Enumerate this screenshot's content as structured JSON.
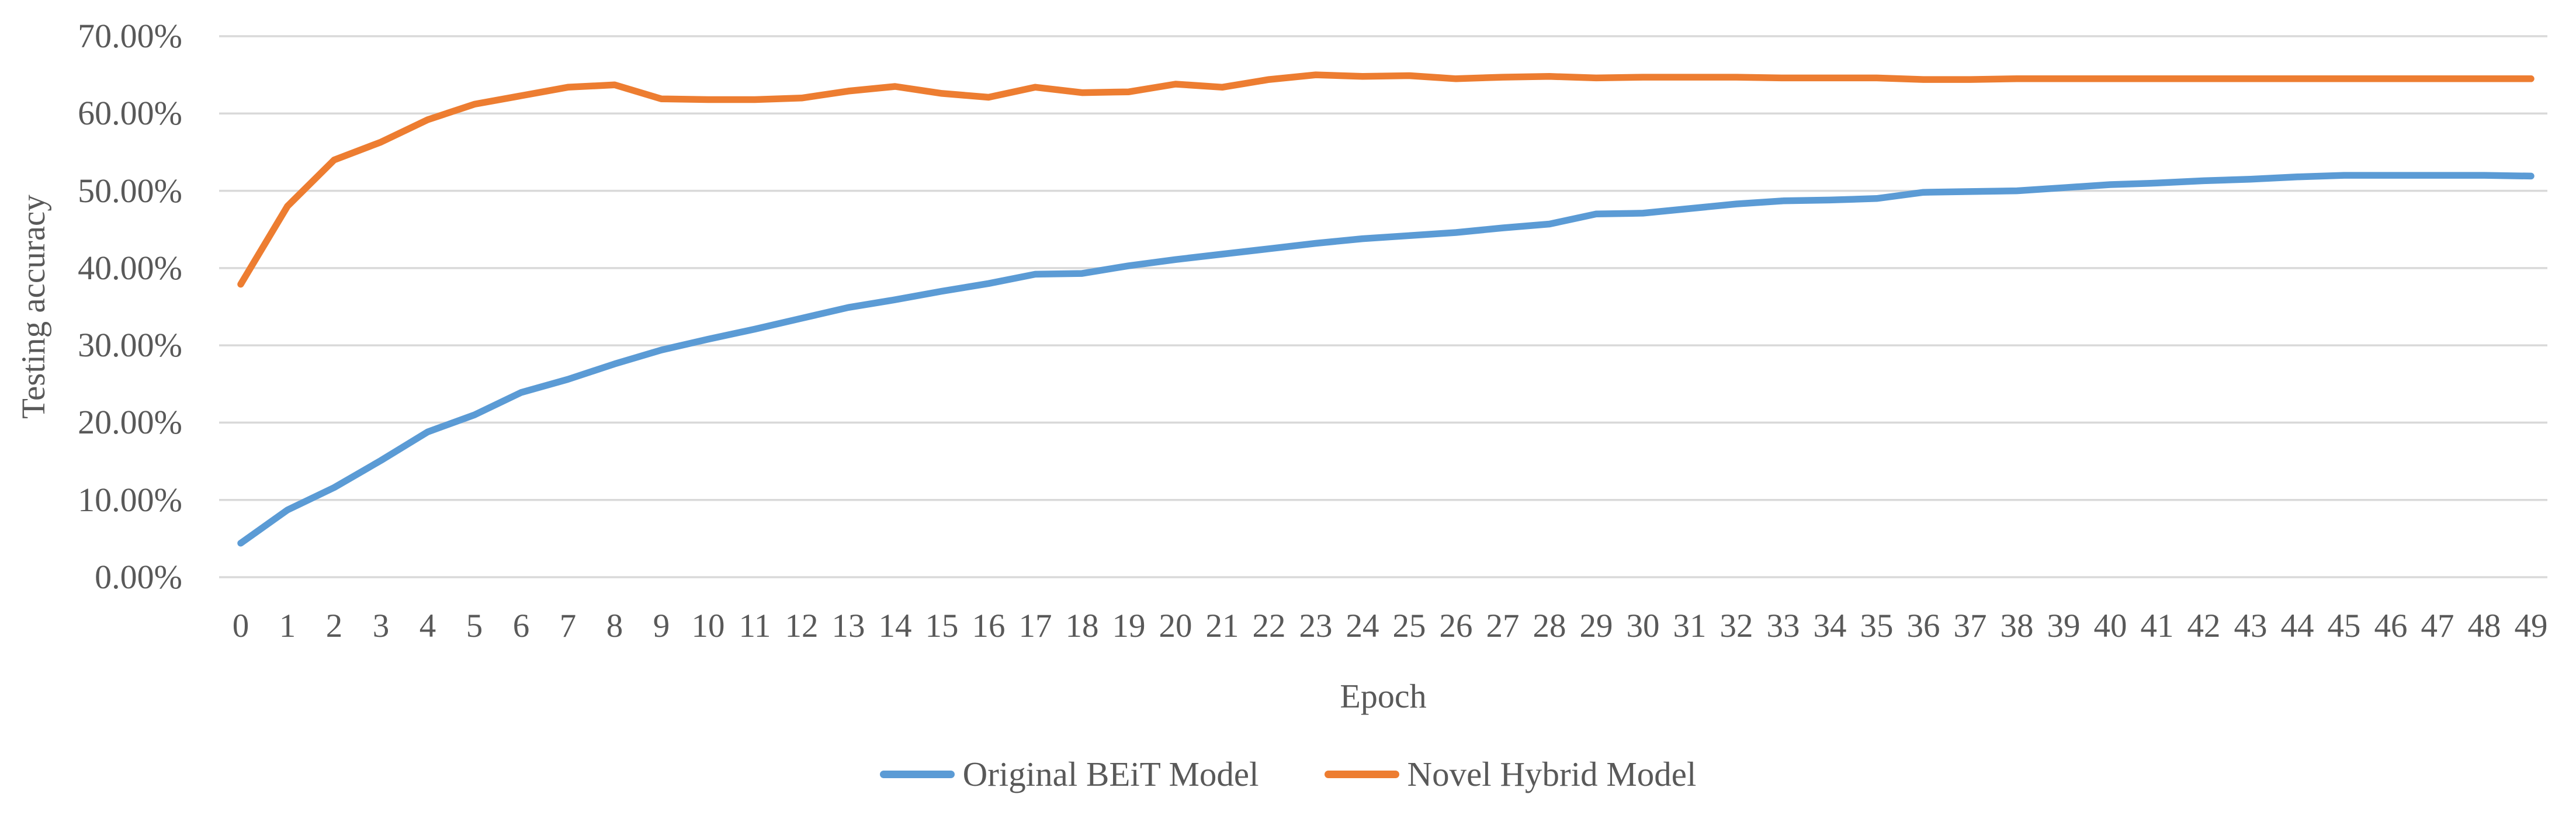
{
  "figure": {
    "background": "#ffffff",
    "text_color": "#595959",
    "gridline_color": "#d9d9d9"
  },
  "chart_data": {
    "type": "line",
    "title": "",
    "xlabel": "Epoch",
    "ylabel": "Testing accuracy",
    "ylim": [
      0,
      70
    ],
    "grid": true,
    "legend_position": "bottom",
    "ytick_labels": [
      "0.00%",
      "10.00%",
      "20.00%",
      "30.00%",
      "40.00%",
      "50.00%",
      "60.00%",
      "70.00%"
    ],
    "x": [
      0,
      1,
      2,
      3,
      4,
      5,
      6,
      7,
      8,
      9,
      10,
      11,
      12,
      13,
      14,
      15,
      16,
      17,
      18,
      19,
      20,
      21,
      22,
      23,
      24,
      25,
      26,
      27,
      28,
      29,
      30,
      31,
      32,
      33,
      34,
      35,
      36,
      37,
      38,
      39,
      40,
      41,
      42,
      43,
      44,
      45,
      46,
      47,
      48,
      49
    ],
    "series": [
      {
        "name": "Original BEiT Model",
        "color": "#5B9BD5",
        "unit": "percent",
        "values": [
          4.4,
          8.7,
          11.6,
          15.1,
          18.8,
          21.0,
          23.9,
          25.6,
          27.6,
          29.4,
          30.8,
          32.1,
          33.5,
          34.9,
          35.9,
          37.0,
          38.0,
          39.2,
          39.3,
          40.3,
          41.1,
          41.8,
          42.5,
          43.2,
          43.8,
          44.2,
          44.6,
          45.2,
          45.7,
          47.0,
          47.1,
          47.7,
          48.3,
          48.7,
          48.8,
          49.0,
          49.8,
          49.9,
          50.0,
          50.4,
          50.8,
          51.0,
          51.3,
          51.5,
          51.8,
          52.0,
          52.0,
          52.0,
          52.0,
          51.9
        ]
      },
      {
        "name": "Novel Hybrid Model",
        "color": "#ED7D31",
        "unit": "percent",
        "values": [
          37.9,
          48.0,
          54.0,
          56.3,
          59.2,
          61.2,
          62.3,
          63.4,
          63.7,
          61.9,
          61.8,
          61.8,
          62.0,
          62.9,
          63.5,
          62.6,
          62.1,
          63.4,
          62.7,
          62.8,
          63.8,
          63.4,
          64.4,
          65.0,
          64.8,
          64.9,
          64.5,
          64.7,
          64.8,
          64.6,
          64.7,
          64.7,
          64.7,
          64.6,
          64.6,
          64.6,
          64.4,
          64.4,
          64.5,
          64.5,
          64.5,
          64.5,
          64.5,
          64.5,
          64.5,
          64.5,
          64.5,
          64.5,
          64.5,
          64.5
        ]
      }
    ]
  }
}
